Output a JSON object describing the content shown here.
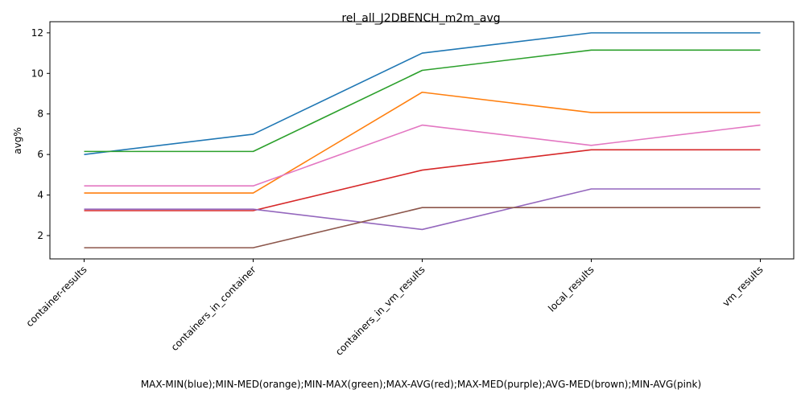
{
  "chart_data": {
    "type": "line",
    "title": "rel_all_J2DBENCH_m2m_avg",
    "xlabel": "MAX-MIN(blue);MIN-MED(orange);MIN-MAX(green);MAX-AVG(red);MAX-MED(purple);AVG-MED(brown);MIN-AVG(pink)",
    "ylabel": "avg%",
    "categories": [
      "container-results",
      "containers_in_container",
      "containers_in_vm_results",
      "local_results",
      "vm_results"
    ],
    "ylim": [
      0.85,
      12.55
    ],
    "yticks": [
      2,
      4,
      6,
      8,
      10,
      12
    ],
    "grid": false,
    "legend": "none",
    "series": [
      {
        "color": "#1f77b4",
        "values": [
          6.0,
          7.0,
          11.0,
          12.0,
          12.0
        ]
      },
      {
        "color": "#ff7f0e",
        "values": [
          4.1,
          4.1,
          9.07,
          8.07,
          8.07
        ]
      },
      {
        "color": "#2ca02c",
        "values": [
          6.15,
          6.15,
          10.15,
          11.15,
          11.15
        ]
      },
      {
        "color": "#d62728",
        "values": [
          3.23,
          3.23,
          5.23,
          6.23,
          6.23
        ]
      },
      {
        "color": "#9467bd",
        "values": [
          3.3,
          3.3,
          2.3,
          4.3,
          4.3
        ]
      },
      {
        "color": "#8c564b",
        "values": [
          1.4,
          1.4,
          3.38,
          3.38,
          3.38
        ]
      },
      {
        "color": "#e377c2",
        "values": [
          4.45,
          4.45,
          7.45,
          6.45,
          7.45
        ]
      }
    ]
  }
}
